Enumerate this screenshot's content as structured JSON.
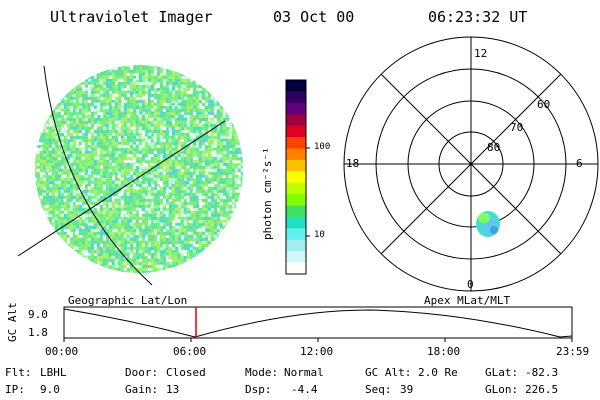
{
  "header": {
    "title": "Ultraviolet Imager",
    "date": "03 Oct 00",
    "time": "06:23:32 UT"
  },
  "colorbar": {
    "label": "photon cm⁻²s⁻¹",
    "ticks": [
      "100",
      "10"
    ],
    "colors": [
      "#000040",
      "#300060",
      "#600080",
      "#a00040",
      "#e00020",
      "#ff4000",
      "#ff8000",
      "#ffc000",
      "#ffff00",
      "#c0ff00",
      "#80ff00",
      "#40e060",
      "#20e0c0",
      "#60f0f0",
      "#a0f0f0",
      "#d0f8f8",
      "#ffffff"
    ]
  },
  "polar_plot": {
    "labels": {
      "top": "12",
      "left": "18",
      "right": "6",
      "bottom": "0",
      "lat60": "60",
      "lat70": "70",
      "lat80": "80"
    }
  },
  "timeline": {
    "left_caption": "Geographic Lat/Lon",
    "right_caption": "Apex MLat/MLT",
    "axis_label": "GC Alt",
    "y_ticks": [
      "9.0",
      "1.8"
    ],
    "x_ticks": [
      "00:00",
      "06:00",
      "12:00",
      "18:00",
      "23:59"
    ],
    "marker_time": "06:23"
  },
  "info": {
    "flt_label": "Flt:",
    "flt_value": "LBHL",
    "door_label": "Door:",
    "door_value": "Closed",
    "mode_label": "Mode:",
    "mode_value": "Normal",
    "gcalt_label": "GC Alt:",
    "gcalt_value": "2.0 Re",
    "glat_label": "GLat:",
    "glat_value": "-82.3",
    "ip_label": "IP:",
    "ip_value": "9.0",
    "gain_label": "Gain:",
    "gain_value": "13",
    "dsp_label": "Dsp:",
    "dsp_value": "-4.4",
    "seq_label": "Seq:",
    "seq_value": "39",
    "glon_label": "GLon:",
    "glon_value": "226.5"
  }
}
